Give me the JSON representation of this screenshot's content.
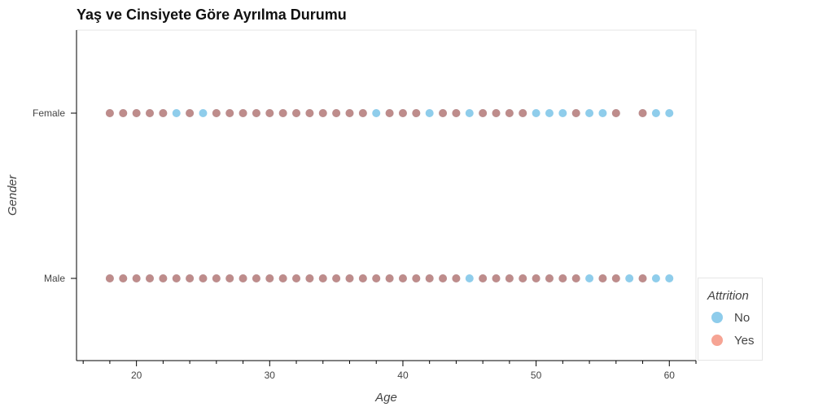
{
  "chart_data": {
    "type": "scatter",
    "title": "Yaş ve Cinsiyete Göre Ayrılma Durumu",
    "xlabel": "Age",
    "ylabel": "Gender",
    "xlim": [
      15.5,
      62
    ],
    "xticks": [
      20,
      30,
      40,
      50,
      60
    ],
    "categories": [
      "Female",
      "Male"
    ],
    "legend": {
      "title": "Attrition",
      "position": "bottom-right"
    },
    "series": [
      {
        "name": "No",
        "color": "#1f9bd8",
        "opacity": 0.5,
        "points": {
          "Female": [
            18,
            19,
            20,
            21,
            22,
            23,
            24,
            25,
            26,
            27,
            28,
            29,
            30,
            31,
            32,
            33,
            34,
            35,
            36,
            37,
            38,
            39,
            40,
            41,
            42,
            43,
            44,
            45,
            46,
            47,
            48,
            49,
            50,
            51,
            52,
            53,
            54,
            55,
            56,
            58,
            59,
            60
          ],
          "Male": [
            18,
            19,
            20,
            21,
            22,
            23,
            24,
            25,
            26,
            27,
            28,
            29,
            30,
            31,
            32,
            33,
            34,
            35,
            36,
            37,
            38,
            39,
            40,
            41,
            42,
            43,
            44,
            45,
            46,
            47,
            48,
            49,
            50,
            51,
            52,
            53,
            54,
            55,
            56,
            57,
            58,
            59,
            60
          ]
        }
      },
      {
        "name": "Yes",
        "color": "#ee4b2b",
        "opacity": 0.5,
        "points": {
          "Female": [
            18,
            19,
            20,
            21,
            22,
            24,
            26,
            27,
            28,
            29,
            30,
            31,
            32,
            33,
            34,
            35,
            36,
            37,
            39,
            40,
            41,
            43,
            44,
            46,
            47,
            48,
            49,
            53,
            56,
            58
          ],
          "Male": [
            18,
            19,
            20,
            21,
            22,
            23,
            24,
            25,
            26,
            27,
            28,
            29,
            30,
            31,
            32,
            33,
            34,
            35,
            36,
            37,
            38,
            39,
            40,
            41,
            42,
            43,
            44,
            46,
            47,
            48,
            49,
            50,
            51,
            52,
            53,
            55,
            56,
            58
          ]
        }
      }
    ]
  }
}
